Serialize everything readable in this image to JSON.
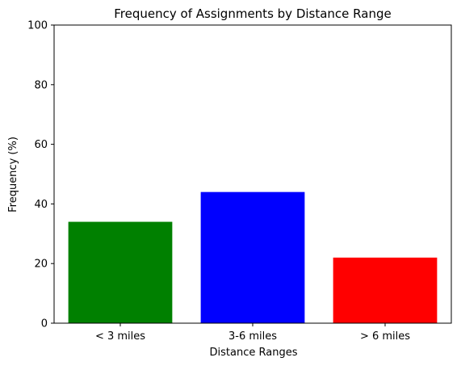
{
  "chart_data": {
    "type": "bar",
    "title": "Frequency of Assignments by Distance Range",
    "xlabel": "Distance Ranges",
    "ylabel": "Frequency (%)",
    "categories": [
      "< 3 miles",
      "3-6 miles",
      "> 6 miles"
    ],
    "values": [
      34,
      44,
      22
    ],
    "colors": [
      "#008000",
      "#0000ff",
      "#ff0000"
    ],
    "ylim": [
      0,
      100
    ],
    "yticks": [
      0,
      20,
      40,
      60,
      80,
      100
    ],
    "grid": false,
    "legend": "none"
  }
}
